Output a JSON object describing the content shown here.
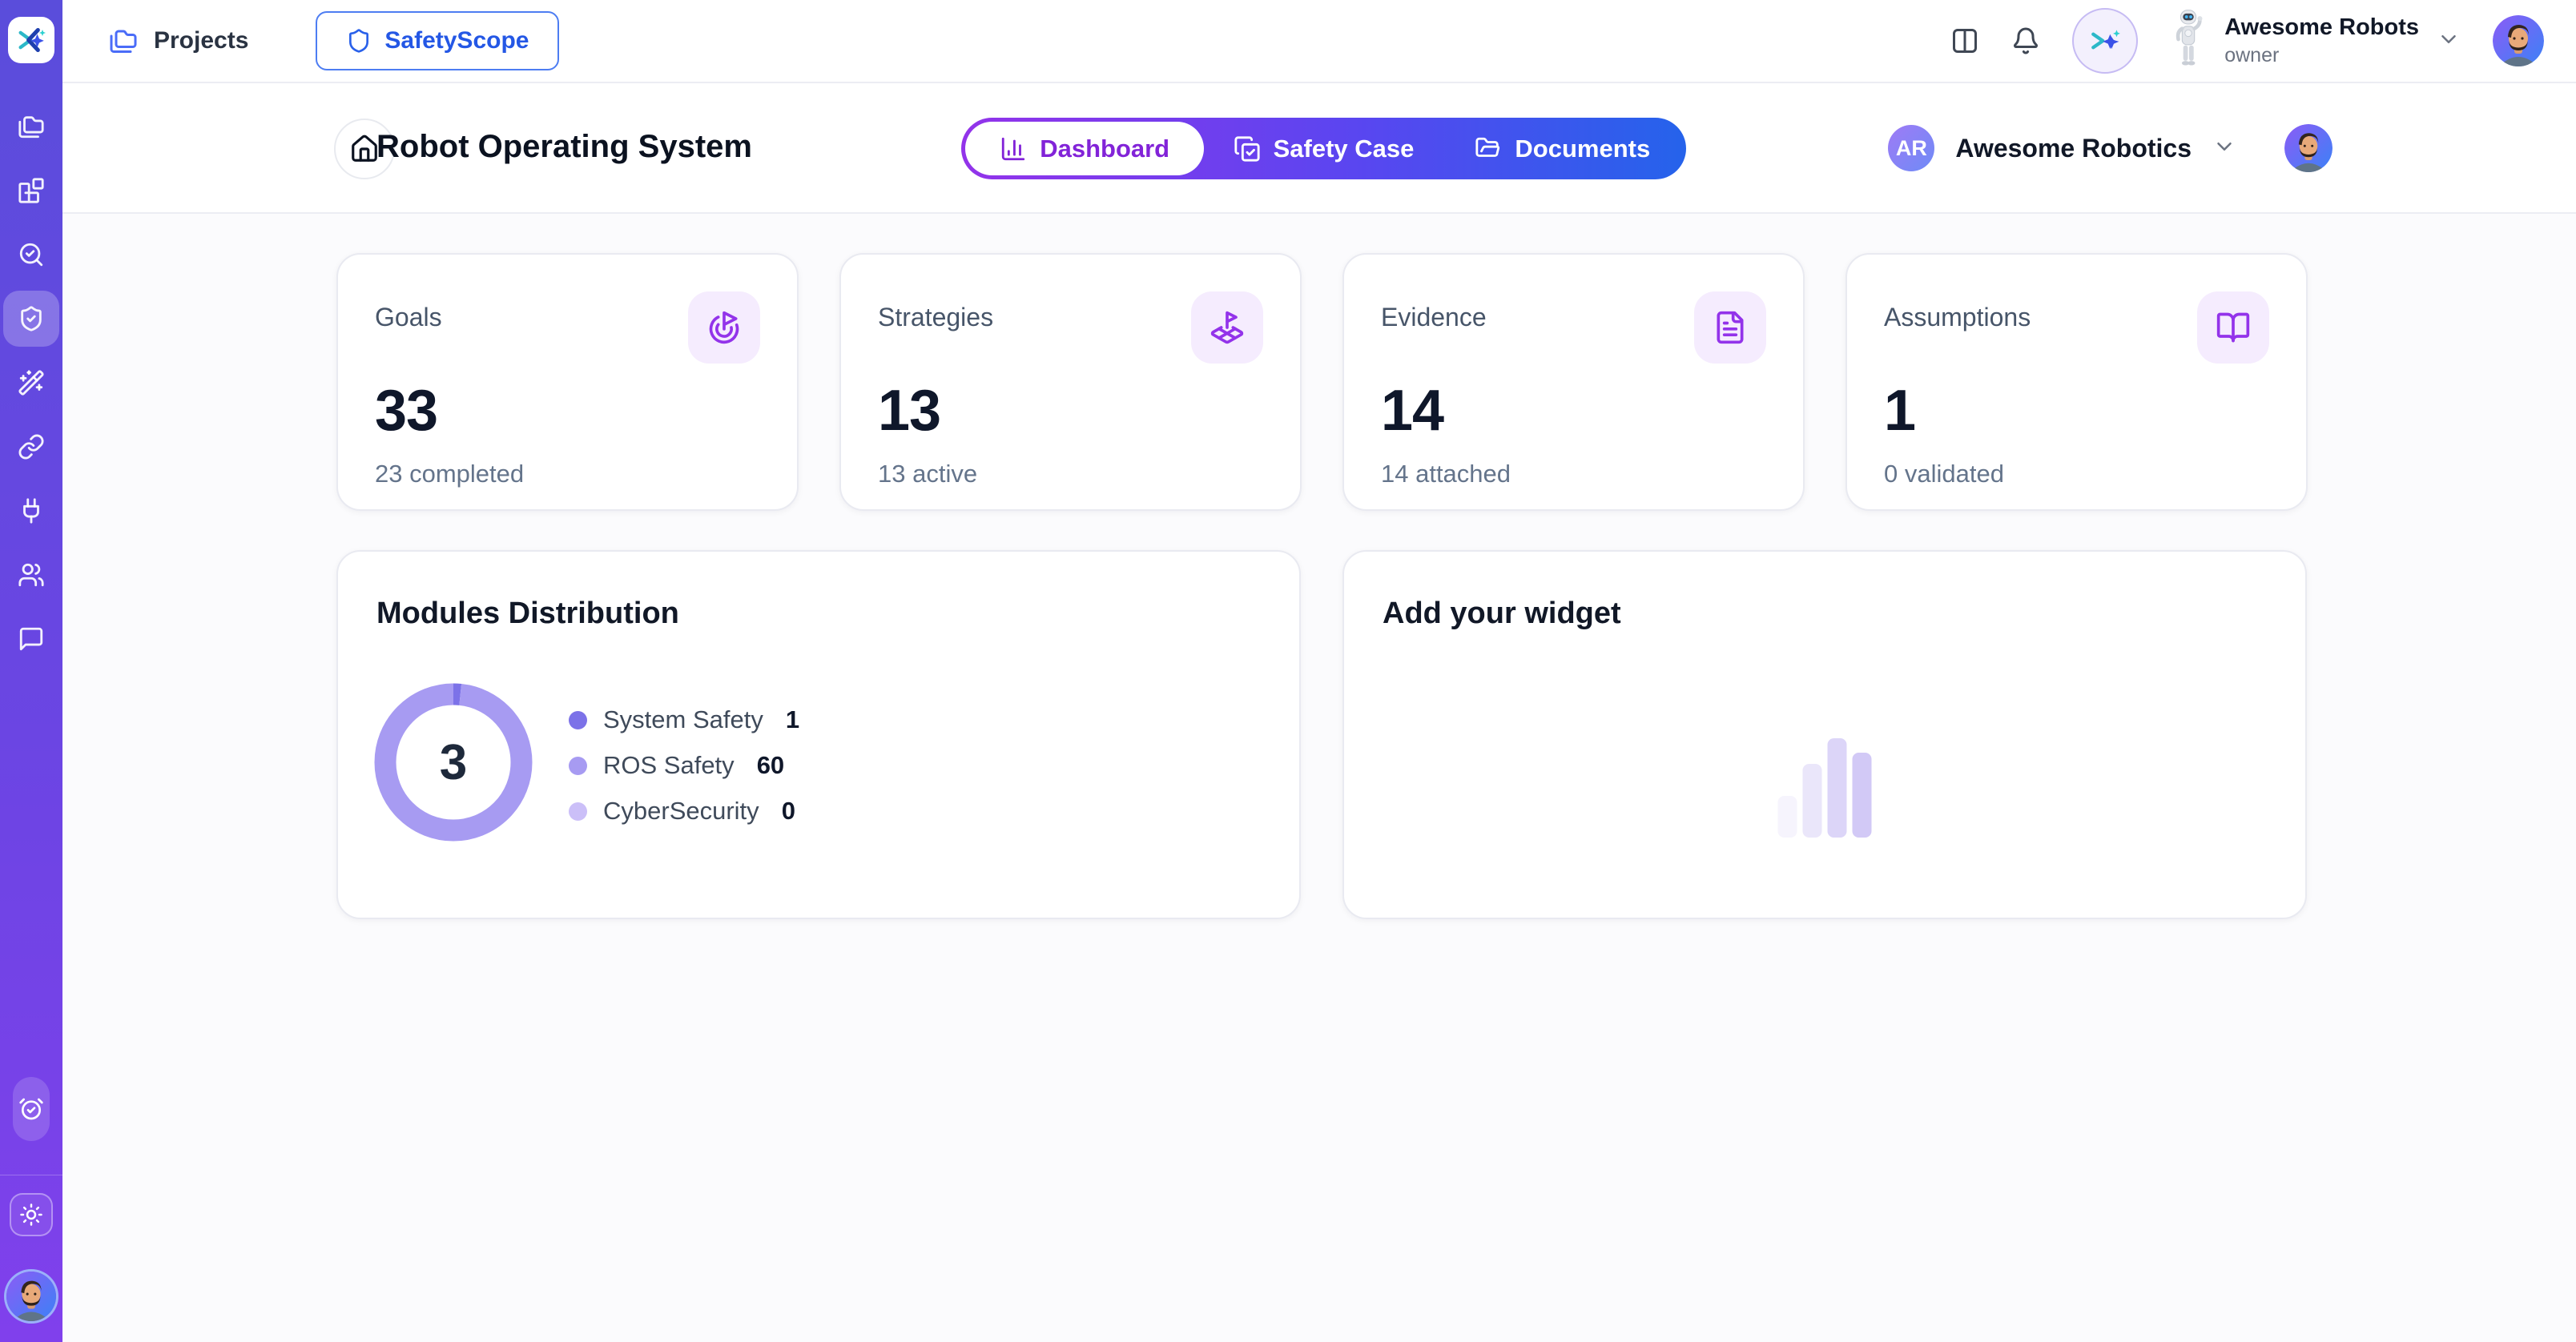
{
  "topbar": {
    "projects_label": "Projects",
    "app_name": "SafetyScope",
    "account": {
      "name": "Awesome Robots",
      "role": "owner"
    },
    "icons": [
      "panel-toggle-icon",
      "bell-icon",
      "ai-sparkle-icon",
      "robot-mascot"
    ]
  },
  "header": {
    "project_title": "Robot Operating System",
    "tabs": [
      {
        "label": "Dashboard",
        "icon": "chart-column-icon",
        "active": true
      },
      {
        "label": "Safety Case",
        "icon": "copy-check-icon",
        "active": false
      },
      {
        "label": "Documents",
        "icon": "folder-open-icon",
        "active": false
      }
    ],
    "org": {
      "initials": "AR",
      "name": "Awesome Robotics"
    }
  },
  "sidebar": {
    "items": [
      {
        "icon": "folders-icon",
        "active": false
      },
      {
        "icon": "blocks-icon",
        "active": false
      },
      {
        "icon": "search-check-icon",
        "active": false
      },
      {
        "icon": "shield-check-icon",
        "active": true
      },
      {
        "icon": "wand-sparkles-icon",
        "active": false
      },
      {
        "icon": "link-icon",
        "active": false
      },
      {
        "icon": "plug-icon",
        "active": false
      },
      {
        "icon": "users-icon",
        "active": false
      },
      {
        "icon": "message-square-icon",
        "active": false
      }
    ],
    "bottom": [
      "alarm-check-icon",
      "sun-icon",
      "user-avatar"
    ]
  },
  "stats": [
    {
      "label": "Goals",
      "value": "33",
      "subtitle": "23 completed",
      "icon": "goal-icon"
    },
    {
      "label": "Strategies",
      "value": "13",
      "subtitle": "13 active",
      "icon": "strategy-flag-icon"
    },
    {
      "label": "Evidence",
      "value": "14",
      "subtitle": "14 attached",
      "icon": "file-text-icon"
    },
    {
      "label": "Assumptions",
      "value": "1",
      "subtitle": "0 validated",
      "icon": "book-open-icon"
    }
  ],
  "modules_card": {
    "title": "Modules Distribution"
  },
  "chart_data": {
    "type": "donut",
    "title": "Modules Distribution",
    "center_label": "3",
    "series": [
      {
        "label": "System Safety",
        "value": 1,
        "color": "#7c72e8"
      },
      {
        "label": "ROS Safety",
        "value": 60,
        "color": "#a79bf2"
      },
      {
        "label": "CyberSecurity",
        "value": 0,
        "color": "#cbbff8"
      }
    ],
    "legend_position": "right"
  },
  "widget_card": {
    "title": "Add your widget"
  },
  "colors": {
    "accent_purple": "#9333ea",
    "accent_blue": "#2563eb",
    "sidebar_top": "#5a4ddb",
    "sidebar_bottom": "#8040ec",
    "stat_icon_bg": "#f5ecfe",
    "card_border": "#e9eaf1"
  }
}
